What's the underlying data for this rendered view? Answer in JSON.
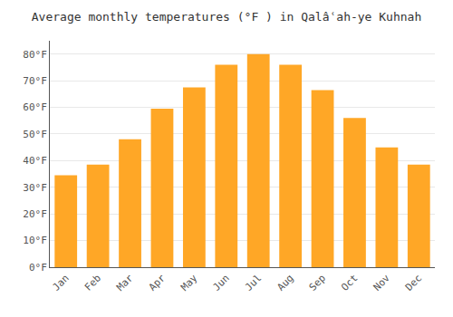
{
  "chart_data": {
    "type": "bar",
    "title": "Average monthly temperatures (°F ) in Qalâʿah-ye Kuhnah",
    "categories": [
      "Jan",
      "Feb",
      "Mar",
      "Apr",
      "May",
      "Jun",
      "Jul",
      "Aug",
      "Sep",
      "Oct",
      "Nov",
      "Dec"
    ],
    "values": [
      34.5,
      38.5,
      48.0,
      59.5,
      67.5,
      76.0,
      80.0,
      76.0,
      66.5,
      56.0,
      45.0,
      38.5
    ],
    "color": "#FFA726",
    "ylim": [
      0,
      85
    ],
    "yticks": [
      {
        "value": 0,
        "label": "0°F"
      },
      {
        "value": 10,
        "label": "10°F"
      },
      {
        "value": 20,
        "label": "20°F"
      },
      {
        "value": 30,
        "label": "30°F"
      },
      {
        "value": 40,
        "label": "40°F"
      },
      {
        "value": 50,
        "label": "50°F"
      },
      {
        "value": 60,
        "label": "60°F"
      },
      {
        "value": 70,
        "label": "70°F"
      },
      {
        "value": 80,
        "label": "80°F"
      }
    ],
    "grid": true
  }
}
